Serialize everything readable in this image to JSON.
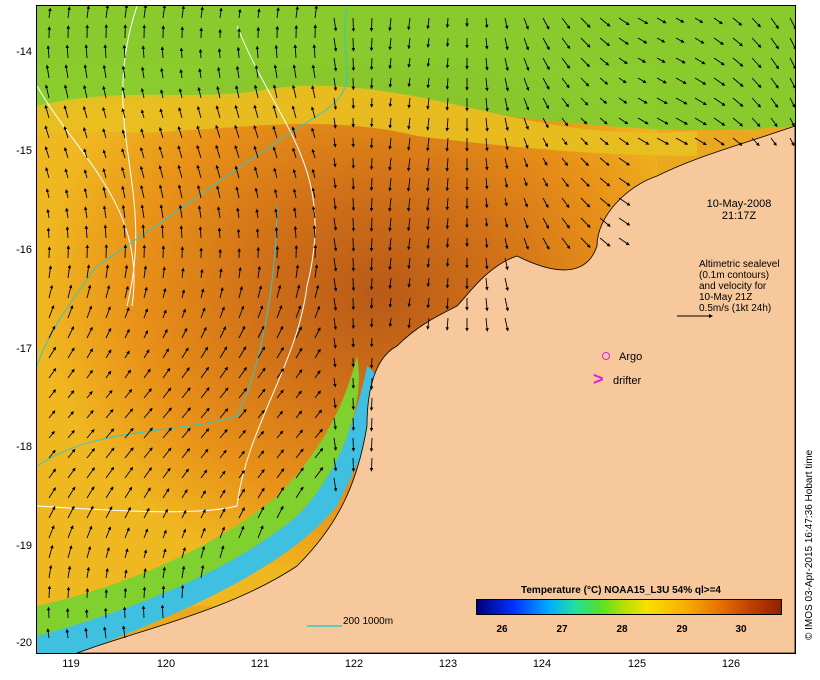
{
  "map": {
    "y_ticks": [
      "-14",
      "-15",
      "-16",
      "-17",
      "-18",
      "-19",
      "-20"
    ],
    "x_ticks": [
      "119",
      "120",
      "121",
      "122",
      "123",
      "124",
      "125",
      "126"
    ],
    "timestamp": [
      "10-May-2008",
      "21:17Z"
    ],
    "altimetry_note": [
      "Altimetric sealevel",
      "(0.1m contours)",
      "and velocity for",
      "10-May 21Z",
      "0.5m/s (1kt 24h)"
    ],
    "argo_label": "Argo",
    "drifter_label": "drifter",
    "scale_label": "200  1000m",
    "colorbar_title": "Temperature (°C) NOAA15_L3U 54% ql>=4",
    "colorbar_ticks": [
      "26",
      "27",
      "28",
      "29",
      "30"
    ],
    "credit": "© IMOS 03-Apr-2015 16:47:36 Hobart time",
    "colors": {
      "land": "#f6c89c",
      "warm_core": "#b85a18",
      "orange": "#e89018",
      "yellow": "#f0c820",
      "green": "#60d030",
      "cyan_contour": "#30c8c8",
      "marker": "#e020e0"
    }
  }
}
